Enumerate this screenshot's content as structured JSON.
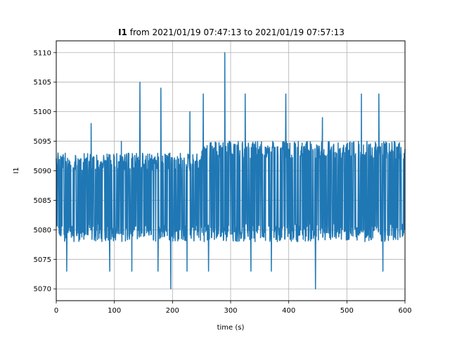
{
  "chart_data": {
    "type": "line",
    "title_bold": "I1",
    "title_rest": " from 2021/01/19 07:47:13 to 2021/01/19 07:57:13",
    "xlabel": "time (s)",
    "ylabel": "I1",
    "xlim": [
      0,
      600
    ],
    "ylim": [
      5068,
      5112
    ],
    "xticks": [
      0,
      100,
      200,
      300,
      400,
      500,
      600
    ],
    "yticks": [
      5070,
      5075,
      5080,
      5085,
      5090,
      5095,
      5100,
      5105,
      5110
    ],
    "grid": true,
    "series": [
      {
        "color": "#1f77b4",
        "band_before_110": [
          5078,
          5093
        ],
        "band_110_to_250": [
          5078,
          5093
        ],
        "band_after_250": [
          5078,
          5095
        ],
        "spikes": [
          {
            "x": 3,
            "y": 5093
          },
          {
            "x": 18,
            "y": 5073
          },
          {
            "x": 60,
            "y": 5098
          },
          {
            "x": 92,
            "y": 5073
          },
          {
            "x": 112,
            "y": 5095
          },
          {
            "x": 130,
            "y": 5073
          },
          {
            "x": 144,
            "y": 5105
          },
          {
            "x": 175,
            "y": 5073
          },
          {
            "x": 180,
            "y": 5104
          },
          {
            "x": 197,
            "y": 5070
          },
          {
            "x": 225,
            "y": 5073
          },
          {
            "x": 230,
            "y": 5100
          },
          {
            "x": 253,
            "y": 5103
          },
          {
            "x": 262,
            "y": 5073
          },
          {
            "x": 290,
            "y": 5110
          },
          {
            "x": 325,
            "y": 5103
          },
          {
            "x": 335,
            "y": 5073
          },
          {
            "x": 370,
            "y": 5073
          },
          {
            "x": 395,
            "y": 5103
          },
          {
            "x": 446,
            "y": 5070
          },
          {
            "x": 458,
            "y": 5099
          },
          {
            "x": 525,
            "y": 5103
          },
          {
            "x": 555,
            "y": 5103
          },
          {
            "x": 562,
            "y": 5073
          }
        ]
      }
    ]
  }
}
